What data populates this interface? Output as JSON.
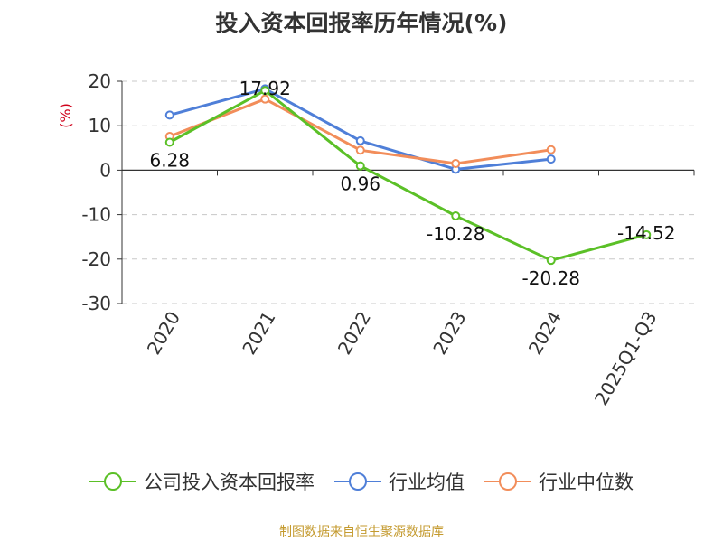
{
  "chart_data": {
    "type": "line",
    "title": "投入资本回报率历年情况(%)",
    "ylabel": "(%)",
    "categories": [
      "2020",
      "2021",
      "2022",
      "2023",
      "2024",
      "2025Q1-Q3"
    ],
    "ylim": [
      -30,
      20
    ],
    "yticks": [
      20,
      10,
      0,
      -10,
      -20,
      -30
    ],
    "grid": true,
    "legend_position": "bottom",
    "series": [
      {
        "name": "公司投入资本回报率",
        "color": "#5bc027",
        "values": [
          6.28,
          17.92,
          0.96,
          -10.28,
          -20.28,
          -14.52
        ],
        "labels": [
          "6.28",
          "17.92",
          "0.96",
          "-10.28",
          "-20.28",
          "-14.52"
        ]
      },
      {
        "name": "行业均值",
        "color": "#4f7fd8",
        "values": [
          12.4,
          18.3,
          6.6,
          0.2,
          2.5,
          null
        ]
      },
      {
        "name": "行业中位数",
        "color": "#f28d5a",
        "values": [
          7.6,
          16.0,
          4.5,
          1.5,
          4.6,
          null
        ]
      }
    ]
  },
  "source": "制图数据来自恒生聚源数据库"
}
